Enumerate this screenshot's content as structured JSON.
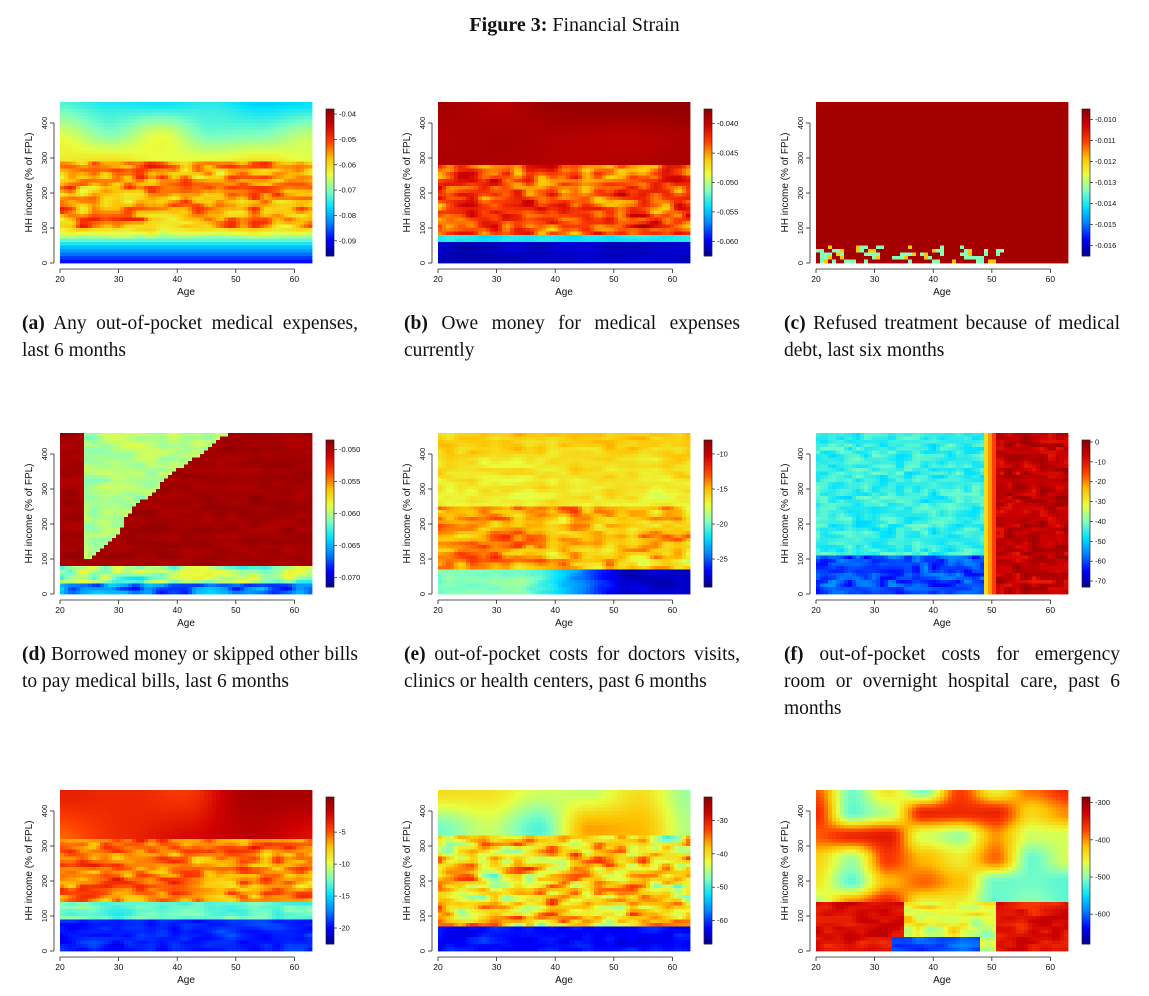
{
  "figure": {
    "number_label": "Figure 3:",
    "title": "Financial Strain"
  },
  "colors": {
    "palette": [
      "#00008B",
      "#0000FF",
      "#0080FF",
      "#00E0FF",
      "#80FFC0",
      "#E8FF40",
      "#FFC000",
      "#FF4000",
      "#D00000",
      "#8B0000"
    ]
  },
  "chart_data": [
    {
      "id": "a",
      "type": "heatmap",
      "letter": "(a)",
      "caption": "Any out-of-pocket medical expenses, last 6 months",
      "xlabel": "Age",
      "ylabel": "HH income (% of FPL)",
      "xlim": [
        20,
        63
      ],
      "ylim": [
        0,
        460
      ],
      "xticks": [
        "20",
        "30",
        "40",
        "50",
        "60"
      ],
      "yticks": [
        "0",
        "100",
        "200",
        "300",
        "400"
      ],
      "colorbar": {
        "range": [
          -0.096,
          -0.038
        ],
        "ticks": [
          "-0.04",
          "-0.05",
          "-0.06",
          "-0.07",
          "-0.08",
          "-0.09"
        ]
      },
      "pattern": "a"
    },
    {
      "id": "b",
      "type": "heatmap",
      "letter": "(b)",
      "caption": "Owe money for medical expenses currently",
      "xlabel": "Age",
      "ylabel": "HH income (% of FPL)",
      "xlim": [
        20,
        63
      ],
      "ylim": [
        0,
        460
      ],
      "xticks": [
        "20",
        "30",
        "40",
        "50",
        "60"
      ],
      "yticks": [
        "0",
        "100",
        "200",
        "300",
        "400"
      ],
      "colorbar": {
        "range": [
          -0.0625,
          -0.0375
        ],
        "ticks": [
          "-0.040",
          "-0.045",
          "-0.050",
          "-0.055",
          "-0.060"
        ]
      },
      "pattern": "b"
    },
    {
      "id": "c",
      "type": "heatmap",
      "letter": "(c)",
      "caption": "Refused treatment because of medical debt, last six months",
      "xlabel": "Age",
      "ylabel": "HH income (% of FPL)",
      "xlim": [
        20,
        63
      ],
      "ylim": [
        0,
        460
      ],
      "xticks": [
        "20",
        "30",
        "40",
        "50",
        "60"
      ],
      "yticks": [
        "0",
        "100",
        "200",
        "300",
        "400"
      ],
      "colorbar": {
        "range": [
          -0.0165,
          -0.0095
        ],
        "ticks": [
          "-0.010",
          "-0.011",
          "-0.012",
          "-0.013",
          "-0.014",
          "-0.015",
          "-0.016"
        ]
      },
      "pattern": "c"
    },
    {
      "id": "d",
      "type": "heatmap",
      "letter": "(d)",
      "caption": "Borrowed money or skipped other bills to pay medical bills, last 6 months",
      "xlabel": "Age",
      "ylabel": "HH income (% of FPL)",
      "xlim": [
        20,
        63
      ],
      "ylim": [
        0,
        460
      ],
      "xticks": [
        "20",
        "30",
        "40",
        "50",
        "60"
      ],
      "yticks": [
        "0",
        "100",
        "200",
        "300",
        "400"
      ],
      "colorbar": {
        "range": [
          -0.0715,
          -0.0485
        ],
        "ticks": [
          "-0.050",
          "-0.055",
          "-0.060",
          "-0.065",
          "-0.070"
        ]
      },
      "pattern": "d"
    },
    {
      "id": "e",
      "type": "heatmap",
      "letter": "(e)",
      "caption": "out-of-pocket costs for doctors visits, clinics or health centers, past 6 months",
      "xlabel": "Age",
      "ylabel": "HH income (% of FPL)",
      "xlim": [
        20,
        63
      ],
      "ylim": [
        0,
        460
      ],
      "xticks": [
        "20",
        "30",
        "40",
        "50",
        "60"
      ],
      "yticks": [
        "0",
        "100",
        "200",
        "300",
        "400"
      ],
      "colorbar": {
        "range": [
          -29,
          -8
        ],
        "ticks": [
          "-10",
          "-15",
          "-20",
          "-25"
        ]
      },
      "pattern": "e"
    },
    {
      "id": "f",
      "type": "heatmap",
      "letter": "(f)",
      "caption": "out-of-pocket costs for emergency room or overnight hospital care, past 6 months",
      "xlabel": "Age",
      "ylabel": "HH income (% of FPL)",
      "xlim": [
        20,
        63
      ],
      "ylim": [
        0,
        460
      ],
      "xticks": [
        "20",
        "30",
        "40",
        "50",
        "60"
      ],
      "yticks": [
        "0",
        "100",
        "200",
        "300",
        "400"
      ],
      "colorbar": {
        "range": [
          -73,
          1
        ],
        "ticks": [
          "0",
          "-10",
          "-20",
          "-30",
          "-40",
          "-50",
          "-60",
          "-70"
        ]
      },
      "pattern": "f"
    },
    {
      "id": "g",
      "type": "heatmap",
      "letter": "",
      "caption": "",
      "xlabel": "Age",
      "ylabel": "HH income (% of FPL)",
      "xlim": [
        20,
        63
      ],
      "ylim": [
        0,
        460
      ],
      "xticks": [
        "20",
        "30",
        "40",
        "50",
        "60"
      ],
      "yticks": [
        "0",
        "100",
        "200",
        "300",
        "400"
      ],
      "colorbar": {
        "range": [
          -22.5,
          0.5
        ],
        "ticks": [
          "-5",
          "-10",
          "-15",
          "-20"
        ]
      },
      "pattern": "g"
    },
    {
      "id": "h",
      "type": "heatmap",
      "letter": "",
      "caption": "",
      "xlabel": "Age",
      "ylabel": "HH income (% of FPL)",
      "xlim": [
        20,
        63
      ],
      "ylim": [
        0,
        460
      ],
      "xticks": [
        "20",
        "30",
        "40",
        "50",
        "60"
      ],
      "yticks": [
        "0",
        "100",
        "200",
        "300",
        "400"
      ],
      "colorbar": {
        "range": [
          -67,
          -23
        ],
        "ticks": [
          "-30",
          "-40",
          "-50",
          "-60"
        ]
      },
      "pattern": "h"
    },
    {
      "id": "i",
      "type": "heatmap",
      "letter": "",
      "caption": "",
      "xlabel": "Age",
      "ylabel": "HH income (% of FPL)",
      "xlim": [
        20,
        63
      ],
      "ylim": [
        0,
        460
      ],
      "xticks": [
        "20",
        "30",
        "40",
        "50",
        "60"
      ],
      "yticks": [
        "0",
        "100",
        "200",
        "300",
        "400"
      ],
      "colorbar": {
        "range": [
          -680,
          -285
        ],
        "ticks": [
          "-300",
          "-400",
          "-500",
          "-600"
        ]
      },
      "pattern": "i"
    }
  ]
}
